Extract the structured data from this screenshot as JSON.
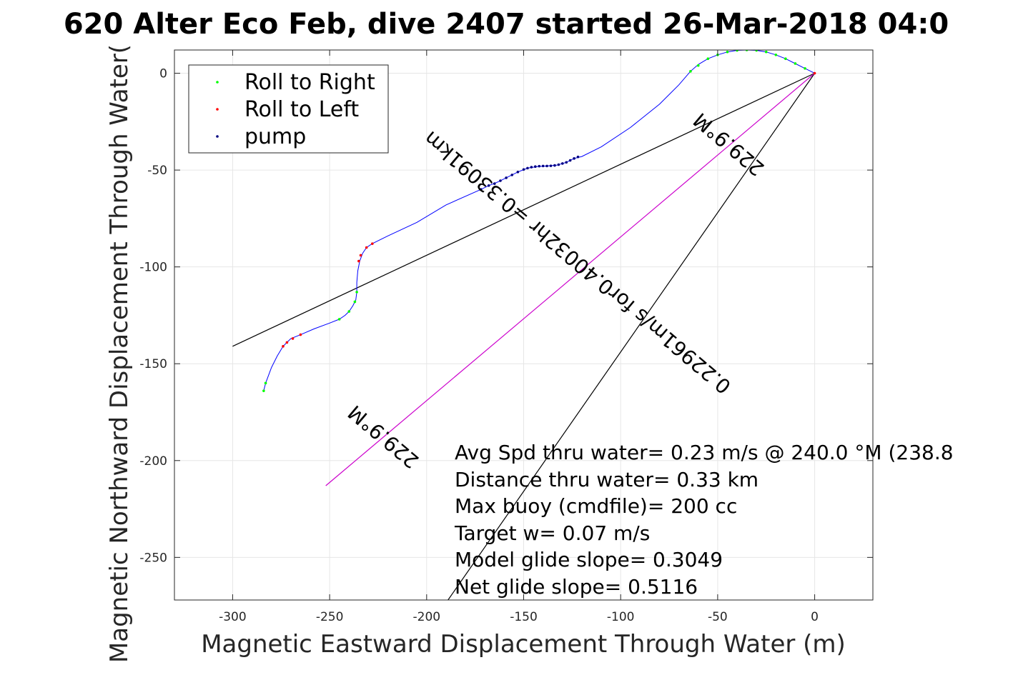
{
  "chart_data": {
    "type": "line",
    "title": "620 Alter Eco Feb, dive 2407 started 26-Mar-2018 04:0",
    "xlabel": "Magnetic Eastward Displacement Through Water (m)",
    "ylabel": "Magnetic Northward Displacement Through Water(",
    "xlim": [
      -330,
      30
    ],
    "ylim": [
      -272,
      12
    ],
    "x_ticks": [
      -300,
      -250,
      -200,
      -150,
      -100,
      -50,
      0
    ],
    "y_ticks": [
      0,
      -50,
      -100,
      -150,
      -200,
      -250
    ],
    "grid": true,
    "legend_position": "top-left",
    "legend": [
      {
        "label": "Roll to Right",
        "color": "#00ff00"
      },
      {
        "label": "Roll to Left",
        "color": "#ff0000"
      },
      {
        "label": "pump",
        "color": "#000080"
      }
    ],
    "track": {
      "name": "track",
      "color": "#0000ff",
      "points": [
        [
          -284,
          -164
        ],
        [
          -283,
          -160
        ],
        [
          -280,
          -152
        ],
        [
          -277,
          -146
        ],
        [
          -274,
          -141
        ],
        [
          -272,
          -139
        ],
        [
          -270,
          -137
        ],
        [
          -265,
          -135
        ],
        [
          -258,
          -132
        ],
        [
          -250,
          -129
        ],
        [
          -245,
          -127
        ],
        [
          -242,
          -125
        ],
        [
          -240,
          -123
        ],
        [
          -238,
          -120
        ],
        [
          -236.5,
          -117
        ],
        [
          -236,
          -113
        ],
        [
          -236,
          -108
        ],
        [
          -235.5,
          -102
        ],
        [
          -234.5,
          -97
        ],
        [
          -233,
          -93
        ],
        [
          -231,
          -90
        ],
        [
          -228,
          -88
        ],
        [
          -220,
          -84
        ],
        [
          -205,
          -77
        ],
        [
          -190,
          -68
        ],
        [
          -172,
          -60
        ],
        [
          -168,
          -58
        ],
        [
          -163,
          -56
        ],
        [
          -158,
          -53.5
        ],
        [
          -153,
          -51
        ],
        [
          -148,
          -49
        ],
        [
          -143,
          -48.2
        ],
        [
          -138,
          -47.9
        ],
        [
          -133,
          -47.5
        ],
        [
          -128,
          -46
        ],
        [
          -124,
          -44
        ],
        [
          -120,
          -43
        ],
        [
          -110,
          -38
        ],
        [
          -95,
          -28
        ],
        [
          -80,
          -16
        ],
        [
          -70,
          -6
        ],
        [
          -64,
          1
        ],
        [
          -60,
          4.5
        ],
        [
          -55,
          7.5
        ],
        [
          -50,
          9.5
        ],
        [
          -45,
          11
        ],
        [
          -40,
          11.8
        ],
        [
          -35,
          12
        ],
        [
          -30,
          11.8
        ],
        [
          -25,
          11
        ],
        [
          -20,
          9.5
        ],
        [
          -15,
          7.5
        ],
        [
          -10,
          5
        ],
        [
          -5,
          2.5
        ],
        [
          -2,
          1
        ],
        [
          0,
          0
        ]
      ]
    },
    "roll_right_points": [
      [
        -284,
        -164
      ],
      [
        -283,
        -160
      ],
      [
        -245,
        -127
      ],
      [
        -240,
        -123
      ],
      [
        -237,
        -118
      ],
      [
        -236,
        -113
      ],
      [
        -64,
        1
      ],
      [
        -60,
        4
      ],
      [
        -55,
        7.5
      ],
      [
        -50,
        9.5
      ],
      [
        -45,
        11
      ],
      [
        -40,
        11.8
      ],
      [
        -35,
        12
      ],
      [
        -30,
        11.8
      ],
      [
        -25,
        11
      ],
      [
        -20,
        9.5
      ],
      [
        -15,
        7.5
      ],
      [
        -10,
        5
      ],
      [
        -5,
        2.5
      ]
    ],
    "roll_left_points": [
      [
        -274,
        -141
      ],
      [
        -272,
        -139
      ],
      [
        -269,
        -137
      ],
      [
        -265,
        -135
      ],
      [
        -235,
        -97
      ],
      [
        -234,
        -94
      ],
      [
        -231,
        -90
      ],
      [
        -228,
        -88
      ],
      [
        0,
        0
      ]
    ],
    "pump_points": [
      [
        -172,
        -60
      ],
      [
        -168,
        -58
      ],
      [
        -165,
        -57
      ],
      [
        -162,
        -55.5
      ],
      [
        -159,
        -54
      ],
      [
        -156,
        -52.5
      ],
      [
        -153,
        -51
      ],
      [
        -150,
        -49.7
      ],
      [
        -148,
        -49
      ],
      [
        -146,
        -48.5
      ],
      [
        -144,
        -48.2
      ],
      [
        -142,
        -48
      ],
      [
        -140,
        -47.9
      ],
      [
        -138,
        -47.9
      ],
      [
        -136,
        -47.8
      ],
      [
        -134,
        -47.6
      ],
      [
        -132,
        -47.2
      ],
      [
        -130,
        -46.6
      ],
      [
        -128,
        -46
      ],
      [
        -126,
        -45
      ],
      [
        -124,
        -44
      ],
      [
        -122,
        -43.2
      ]
    ],
    "reference_lines": [
      {
        "color": "#000000",
        "points": [
          [
            0,
            0
          ],
          [
            -300,
            -141
          ]
        ]
      },
      {
        "color": "#000000",
        "points": [
          [
            0,
            0
          ],
          [
            -189,
            -272
          ]
        ]
      },
      {
        "color": "#cc00cc",
        "points": [
          [
            0,
            0
          ],
          [
            -252,
            -213
          ]
        ]
      }
    ],
    "rotated_labels": [
      {
        "text": "229.9°M",
        "anchor": [
          -220,
          -185
        ],
        "angle": 220.2
      },
      {
        "text": "0.22961m/s for0.40032hr =0.33091km",
        "anchor": [
          -120,
          -95
        ],
        "angle": 220.2
      },
      {
        "text": "229.9°M",
        "anchor": [
          -42,
          -34
        ],
        "angle": 220.2
      }
    ],
    "annotations": [
      "Avg Spd thru water=  0.23 m/s @ 240.0 °M (238.8",
      "Distance thru water=  0.33 km",
      "Max buoy (cmdfile)= 200 cc",
      "Target w= 0.07 m/s",
      "Model glide slope= 0.3049",
      "Net glide slope= 0.5116"
    ]
  }
}
